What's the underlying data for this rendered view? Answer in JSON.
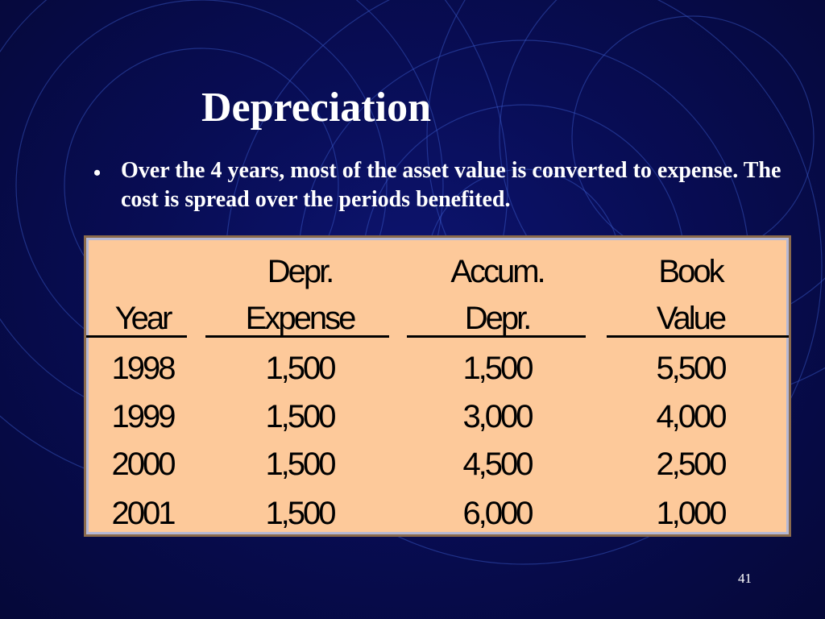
{
  "slide": {
    "title": "Depreciation",
    "bullet": "Over the 4 years, most of the asset value is converted to expense.  The cost is spread over the periods benefited.",
    "page_number": "41"
  },
  "table": {
    "columns": [
      {
        "header_top": "",
        "header_bottom": "Year"
      },
      {
        "header_top": "Depr.",
        "header_bottom": "Expense"
      },
      {
        "header_top": "Accum.",
        "header_bottom": "Depr."
      },
      {
        "header_top": "Book",
        "header_bottom": "Value"
      }
    ],
    "rows": [
      [
        "1998",
        "1,500",
        "1,500",
        "5,500"
      ],
      [
        "1999",
        "1,500",
        "3,000",
        "4,000"
      ],
      [
        "2000",
        "1,500",
        "4,500",
        "2,500"
      ],
      [
        "2001",
        "1,500",
        "6,000",
        "1,000"
      ]
    ]
  },
  "colors": {
    "background": "#080d55",
    "table_fill": "#fdc99a",
    "text": "#ffffff"
  }
}
